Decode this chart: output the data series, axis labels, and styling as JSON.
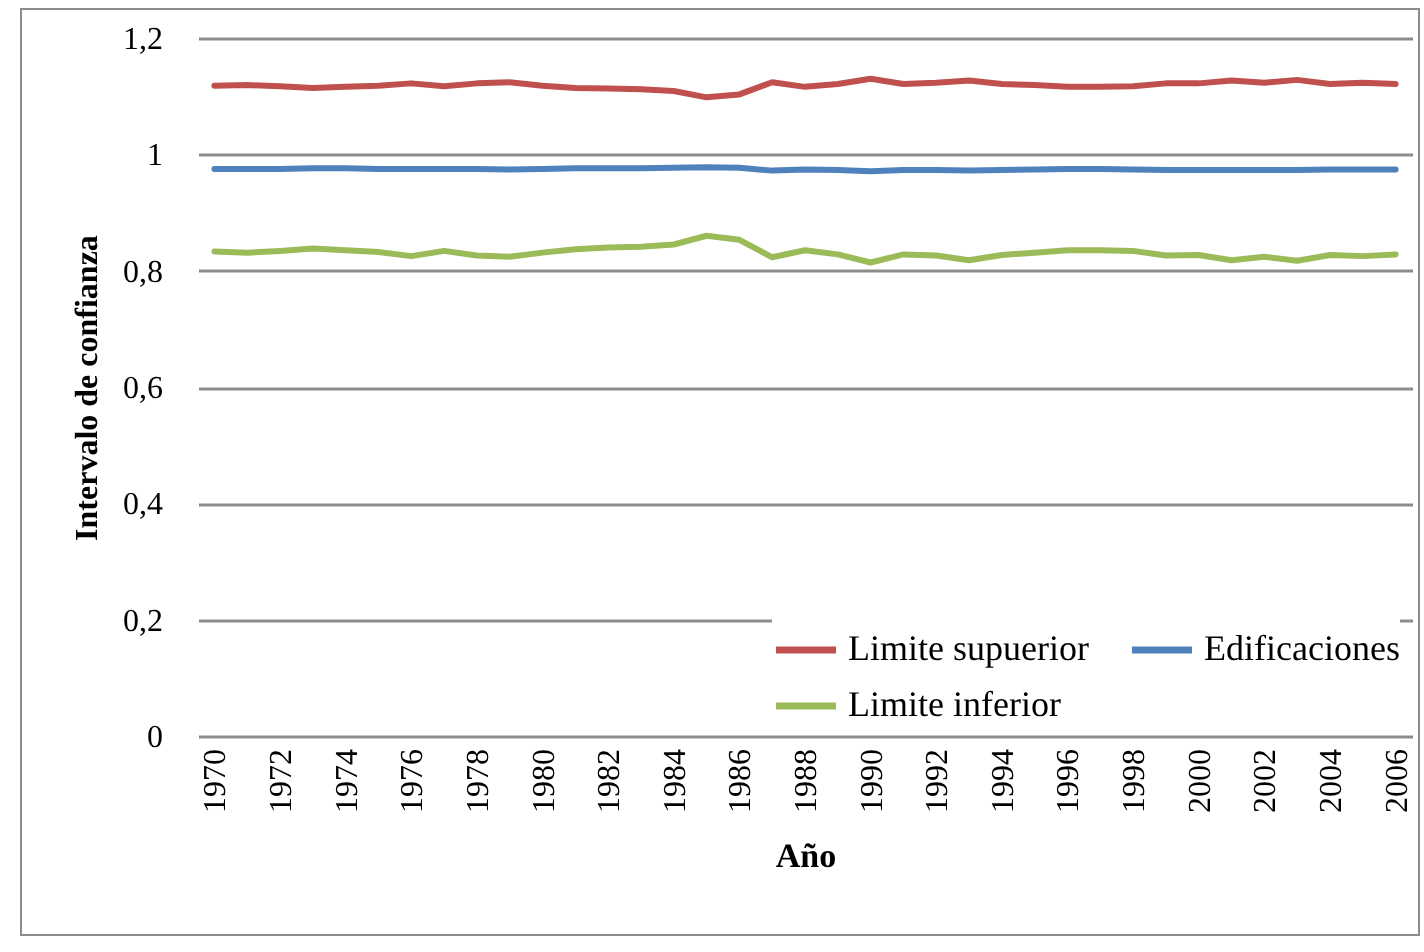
{
  "chart_data": {
    "type": "line",
    "xlabel": "Año",
    "ylabel": "Intervalo de confianza",
    "categories": [
      "1970",
      null,
      "1972",
      null,
      "1974",
      null,
      "1976",
      null,
      "1978",
      null,
      "1980",
      null,
      "1982",
      null,
      "1984",
      null,
      "1986",
      null,
      "1988",
      null,
      "1990",
      null,
      "1992",
      null,
      "1994",
      null,
      "1996",
      null,
      "1998",
      null,
      "2000",
      null,
      "2002",
      null,
      "2004",
      null,
      "2006"
    ],
    "series": [
      {
        "name": "Limite supuerior",
        "color": "#c0504d",
        "values": [
          1.118,
          1.119,
          1.117,
          1.114,
          1.116,
          1.118,
          1.122,
          1.117,
          1.122,
          1.124,
          1.118,
          1.114,
          1.113,
          1.112,
          1.109,
          1.098,
          1.103,
          1.124,
          1.116,
          1.121,
          1.13,
          1.121,
          1.123,
          1.127,
          1.121,
          1.119,
          1.116,
          1.116,
          1.117,
          1.122,
          1.122,
          1.127,
          1.123,
          1.128,
          1.121,
          1.123,
          1.121
        ]
      },
      {
        "name": "Edificaciones",
        "color": "#4f81bd",
        "values": [
          0.975,
          0.975,
          0.975,
          0.976,
          0.976,
          0.975,
          0.975,
          0.975,
          0.975,
          0.974,
          0.975,
          0.976,
          0.976,
          0.976,
          0.977,
          0.978,
          0.977,
          0.972,
          0.974,
          0.973,
          0.971,
          0.973,
          0.973,
          0.972,
          0.973,
          0.974,
          0.975,
          0.975,
          0.974,
          0.973,
          0.973,
          0.973,
          0.973,
          0.973,
          0.974,
          0.974,
          0.974
        ]
      },
      {
        "name": "Limite inferior",
        "color": "#9bbb59",
        "values": [
          0.833,
          0.831,
          0.834,
          0.838,
          0.835,
          0.832,
          0.825,
          0.834,
          0.826,
          0.824,
          0.831,
          0.837,
          0.84,
          0.841,
          0.845,
          0.86,
          0.853,
          0.823,
          0.835,
          0.828,
          0.814,
          0.828,
          0.826,
          0.818,
          0.827,
          0.831,
          0.835,
          0.835,
          0.834,
          0.826,
          0.827,
          0.818,
          0.824,
          0.817,
          0.827,
          0.825,
          0.828
        ]
      }
    ],
    "ylim": [
      0,
      1.2
    ],
    "yticks": [
      0,
      {
        "value": 0.2,
        "label": "0,2"
      },
      {
        "value": 0.4,
        "label": "0,4"
      },
      {
        "value": 0.6,
        "label": "0,6"
      },
      {
        "value": 0.8,
        "label": "0,8"
      },
      1,
      {
        "value": 1.2,
        "label": "1,2"
      }
    ],
    "grid": "y",
    "legend": "bottom right"
  }
}
